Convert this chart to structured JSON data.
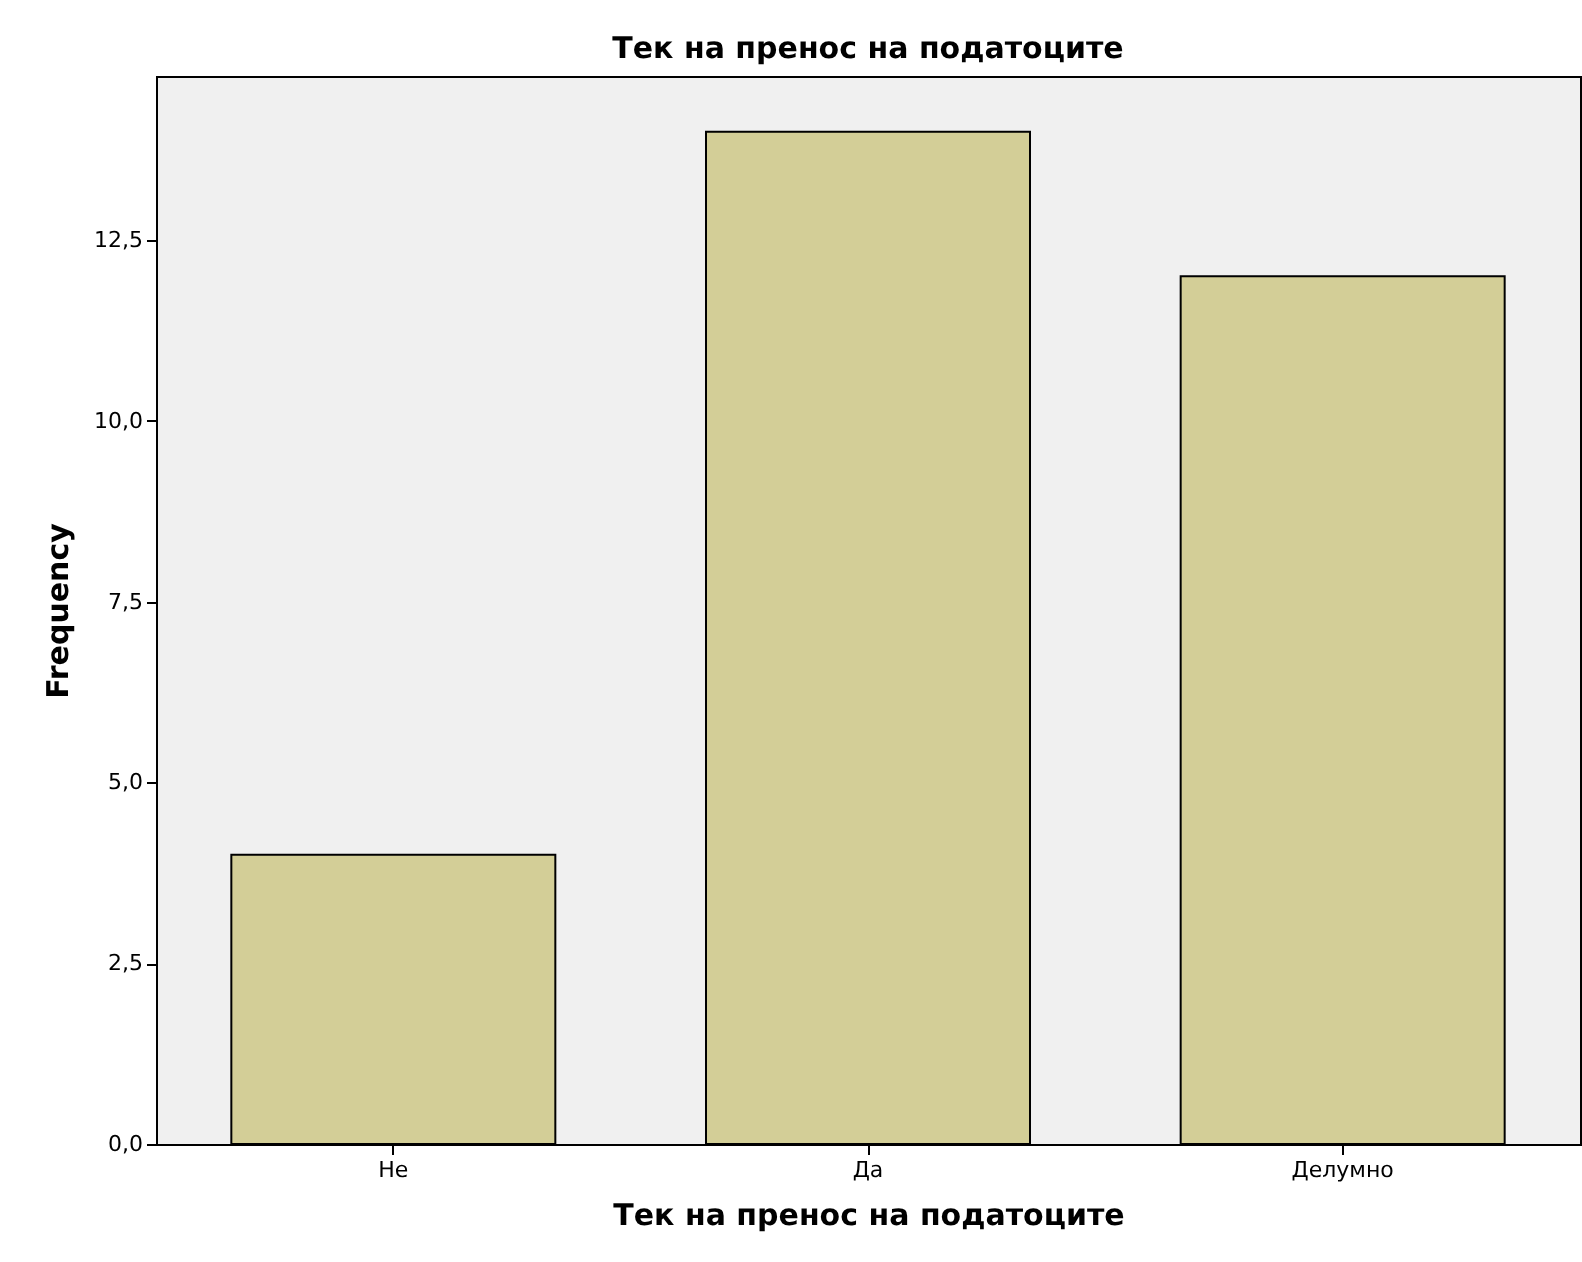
{
  "chart_data": {
    "type": "bar",
    "title": "Тек на пренос на податоците",
    "xlabel": "Тек на пренос на податоците",
    "ylabel": "Frequency",
    "categories": [
      "Не",
      "Да",
      "Делумно"
    ],
    "values": [
      4,
      14,
      12
    ],
    "color": "#d3ce97",
    "ylim": [
      0,
      14.77
    ],
    "yticks": [
      {
        "value": 0,
        "label": "0,0"
      },
      {
        "value": 2.5,
        "label": "2,5"
      },
      {
        "value": 5,
        "label": "5,0"
      },
      {
        "value": 7.5,
        "label": "7,5"
      },
      {
        "value": 10,
        "label": "10,0"
      },
      {
        "value": 12.5,
        "label": "12,5"
      }
    ],
    "grid": false
  }
}
